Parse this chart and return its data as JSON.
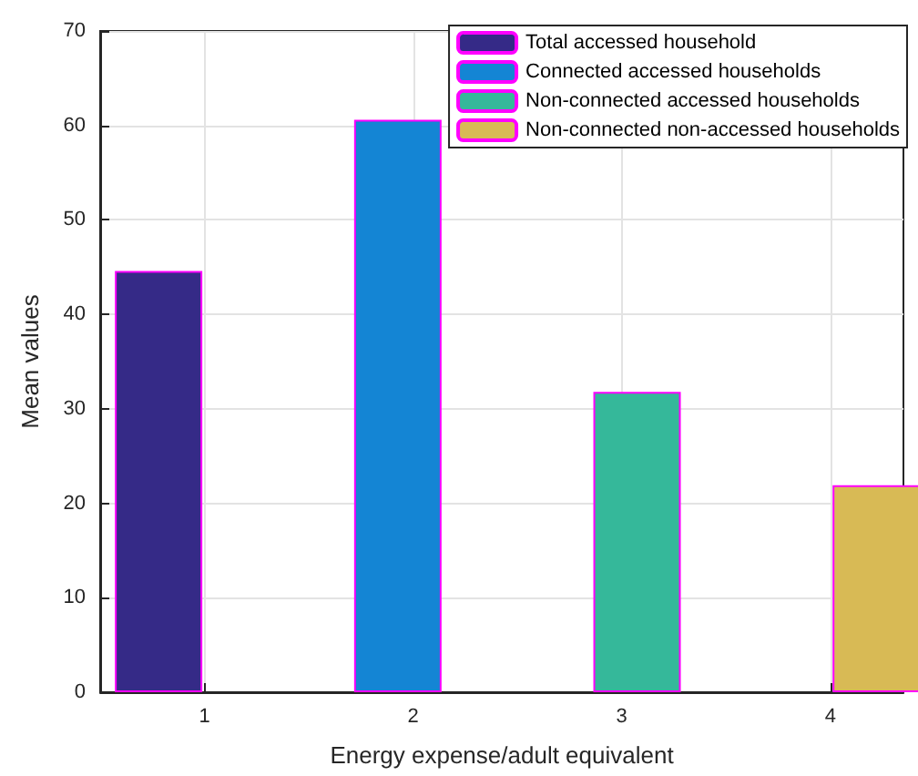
{
  "chart_data": {
    "type": "bar",
    "xlabel": "Energy expense/adult equivalent",
    "ylabel": "Mean values",
    "x": [
      1,
      2,
      3,
      4
    ],
    "series": [
      {
        "name": "Total accessed household",
        "color": "#352a87",
        "values": [
          44.6,
          null,
          null,
          null
        ]
      },
      {
        "name": "Connected accessed households",
        "color": "#1485d4",
        "values": [
          null,
          60.6,
          null,
          null
        ]
      },
      {
        "name": "Non-connected accessed households",
        "color": "#35b89a",
        "values": [
          null,
          null,
          31.8,
          null
        ]
      },
      {
        "name": "Non-connected non-accessed households",
        "color": "#d8ba55",
        "values": [
          null,
          null,
          null,
          21.9
        ]
      }
    ],
    "xlim": [
      0.5,
      4.35
    ],
    "xticks": [
      1,
      2,
      3,
      4
    ],
    "ylim": [
      0,
      70
    ],
    "yticks": [
      0,
      10,
      20,
      30,
      40,
      50,
      60,
      70
    ],
    "grid": true,
    "legend": "top right"
  }
}
